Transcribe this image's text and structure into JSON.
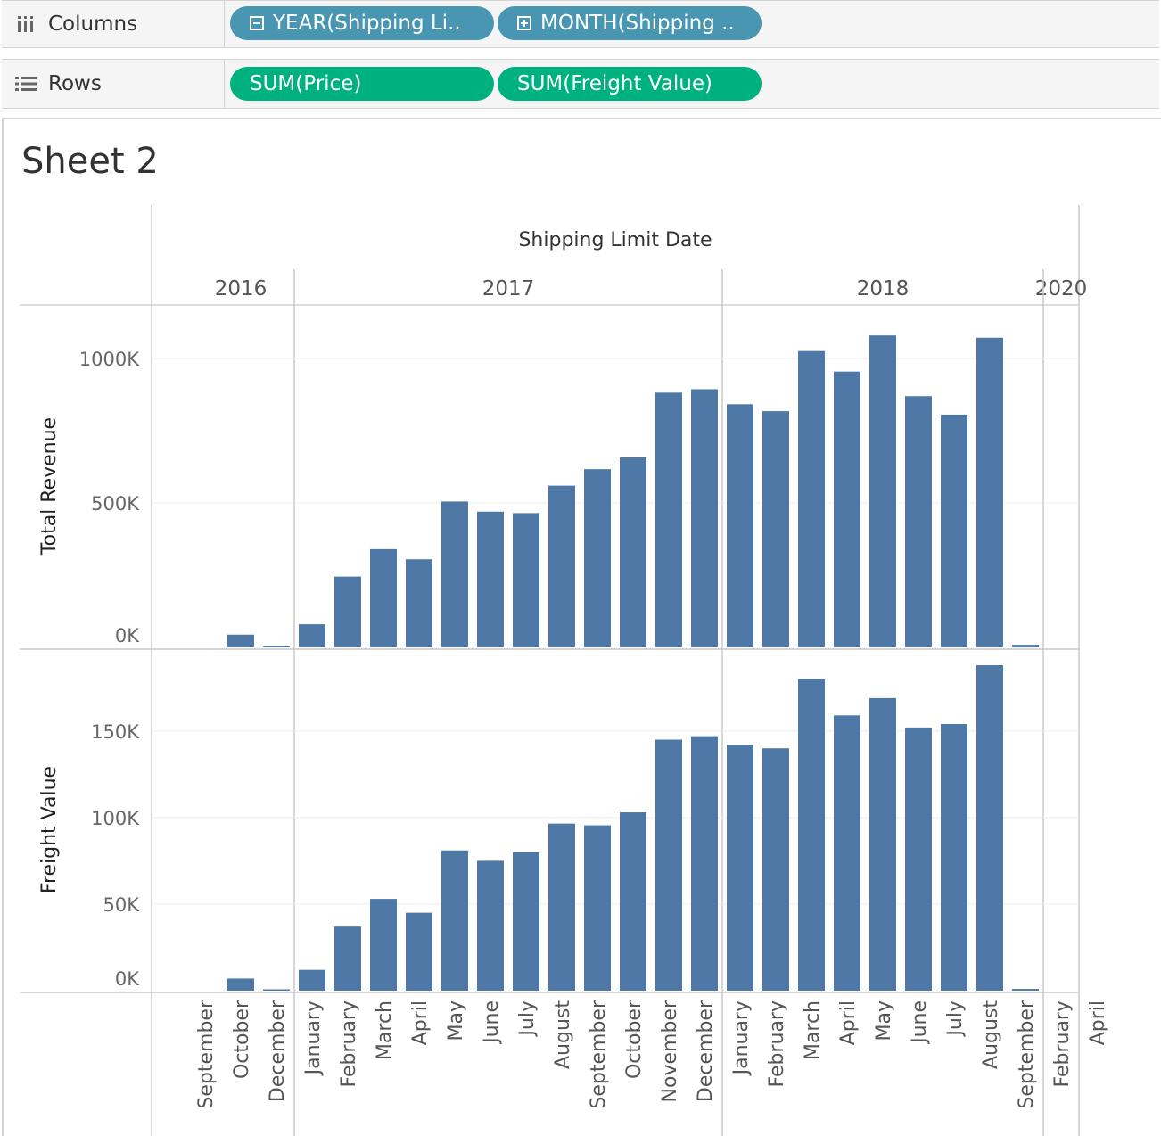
{
  "shelves": {
    "columns": {
      "label": "Columns",
      "icon": "columns-icon",
      "pills": [
        {
          "text": "YEAR(Shipping Li..",
          "icon": "collapse-icon"
        },
        {
          "text": "MONTH(Shipping ..",
          "icon": "expand-icon"
        }
      ]
    },
    "rows": {
      "label": "Rows",
      "icon": "rows-icon",
      "pills": [
        {
          "text": "SUM(Price)"
        },
        {
          "text": "SUM(Freight Value)"
        }
      ]
    }
  },
  "sheet": {
    "title": "Sheet 2"
  },
  "colors": {
    "bar": "#4e79a7",
    "pill_dimension": "#4996b2",
    "pill_measure": "#00b180"
  },
  "chart_data": {
    "type": "bar",
    "title": "Shipping Limit Date",
    "years": [
      {
        "year": "2016",
        "months": [
          "September",
          "October",
          "December"
        ]
      },
      {
        "year": "2017",
        "months": [
          "January",
          "February",
          "March",
          "April",
          "May",
          "June",
          "July",
          "August",
          "September",
          "October",
          "November",
          "December"
        ]
      },
      {
        "year": "2018",
        "months": [
          "January",
          "February",
          "March",
          "April",
          "May",
          "June",
          "July",
          "August",
          "September"
        ]
      },
      {
        "year": "2020",
        "months": [
          "February",
          "April"
        ]
      }
    ],
    "series": [
      {
        "name": "Total Revenue",
        "measure": "SUM(Price)",
        "ylim": [
          0,
          1130000
        ],
        "ticks": [
          0,
          500000,
          1000000
        ],
        "tick_labels": [
          "0K",
          "500K",
          "1000K"
        ],
        "values": [
          0,
          44000,
          150,
          80000,
          245000,
          340000,
          305000,
          505000,
          470000,
          465000,
          560000,
          617000,
          658000,
          882000,
          894000,
          842000,
          818000,
          1026000,
          955000,
          1080000,
          870000,
          806000,
          1072000,
          9000,
          0,
          0
        ]
      },
      {
        "name": "Freight Value",
        "measure": "SUM(Freight Value)",
        "ylim": [
          0,
          188000
        ],
        "ticks": [
          0,
          50000,
          100000,
          150000
        ],
        "tick_labels": [
          "0K",
          "50K",
          "100K",
          "150K"
        ],
        "values": [
          0,
          7000,
          20,
          12000,
          37000,
          53000,
          45000,
          81000,
          75000,
          80000,
          96500,
          95500,
          103000,
          145000,
          147000,
          142000,
          140000,
          180000,
          159000,
          169000,
          152000,
          154000,
          188000,
          1000,
          0,
          0
        ]
      }
    ]
  }
}
